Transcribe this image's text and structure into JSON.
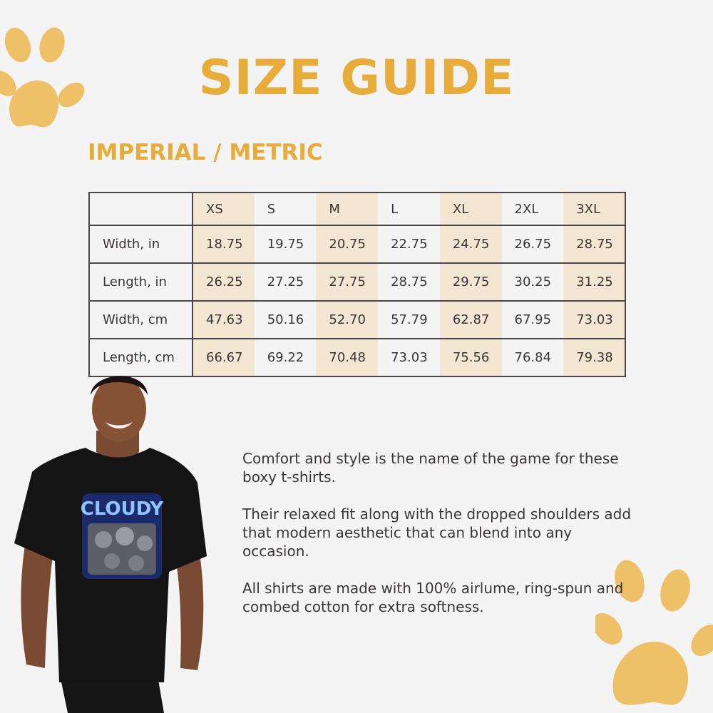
{
  "title": "SIZE GUIDE",
  "subtitle": "IMPERIAL / METRIC",
  "table": {
    "headers": [
      "XS",
      "S",
      "M",
      "L",
      "XL",
      "2XL",
      "3XL"
    ],
    "rows": [
      {
        "label": "Width, in",
        "values": [
          "18.75",
          "19.75",
          "20.75",
          "22.75",
          "24.75",
          "26.75",
          "28.75"
        ]
      },
      {
        "label": "Length, in",
        "values": [
          "26.25",
          "27.25",
          "27.75",
          "28.75",
          "29.75",
          "30.25",
          "31.25"
        ]
      },
      {
        "label": "Width, cm",
        "values": [
          "47.63",
          "50.16",
          "52.70",
          "57.79",
          "62.87",
          "67.95",
          "73.03"
        ]
      },
      {
        "label": "Length, cm",
        "values": [
          "66.67",
          "69.22",
          "70.48",
          "73.03",
          "75.56",
          "76.84",
          "79.38"
        ]
      }
    ]
  },
  "description": [
    "Comfort and style is the name of the game for these boxy t-shirts.",
    "Their relaxed fit along with the dropped shoulders add that modern aesthetic that can blend into any occasion.",
    "All shirts are made with 100% airlume, ring-spun and combed cotton for extra softness."
  ],
  "shirt_print": "CLOUDY",
  "colors": {
    "accent": "#e8ac3a",
    "paw": "#eec068",
    "shade": "#f3e6d2",
    "text": "#3a3636"
  },
  "icons": [
    "paw-icon",
    "paw-icon"
  ]
}
